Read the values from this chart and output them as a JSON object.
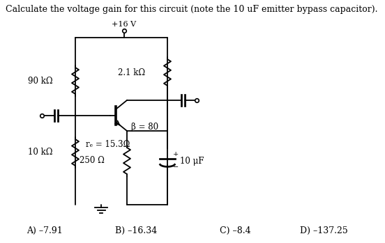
{
  "title": "Calculate the voltage gain for this circuit (note the 10 uF emitter bypass capacitor).",
  "answer_A": "A) –7.91",
  "answer_B": "B) –16.34",
  "answer_C": "C) –8.4",
  "answer_D": "D) –137.25",
  "label_vcc": "+16 V",
  "label_r1": "90 kΩ",
  "label_r2": "2.1 kΩ",
  "label_r3": "10 kΩ",
  "label_re": "250 Ω",
  "label_beta": "β = 80",
  "label_re_val": "rₑ = 15.3Ω",
  "label_cap": "10 μF",
  "bg_color": "#ffffff",
  "line_color": "#000000"
}
